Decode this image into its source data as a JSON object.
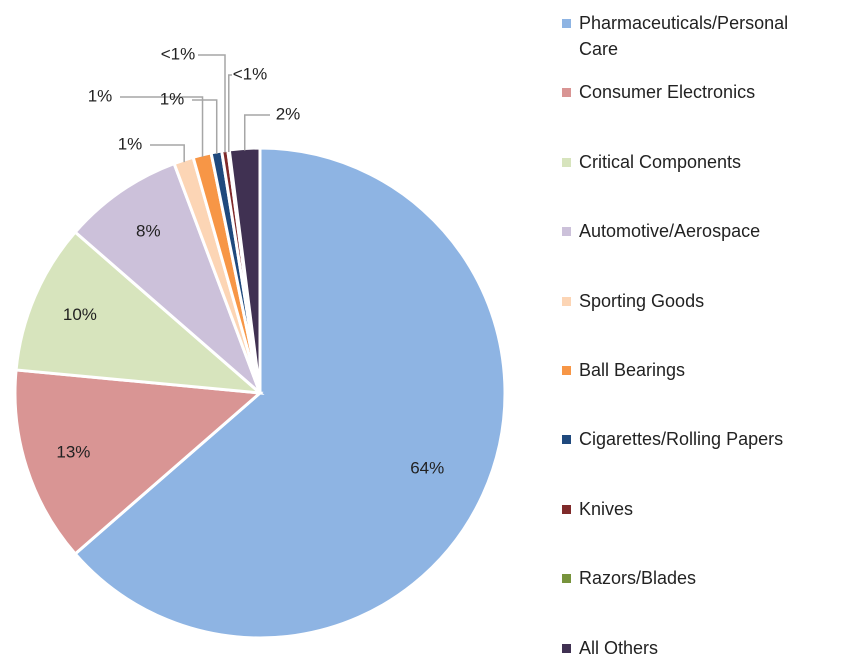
{
  "chart_data": {
    "type": "pie",
    "categories": [
      "Pharmaceuticals/Personal Care",
      "Consumer Electronics",
      "Critical Components",
      "Automotive/Aerospace",
      "Sporting Goods",
      "Ball Bearings",
      "Cigarettes/Rolling Papers",
      "Knives",
      "Razors/Blades",
      "All Others"
    ],
    "values": [
      63.6,
      12.9,
      9.9,
      7.9,
      1.3,
      1.2,
      0.7,
      0.4,
      0.1,
      2.0
    ],
    "value_labels": [
      "64%",
      "13%",
      "10%",
      "8%",
      "1%",
      "1%",
      "1%",
      "<1%",
      "<1%",
      "2%"
    ],
    "colors": [
      "#8eb4e3",
      "#d99594",
      "#d7e4bd",
      "#ccc1da",
      "#fcd5b5",
      "#f79646",
      "#1f497d",
      "#7f2a2a",
      "#77933c",
      "#403152"
    ],
    "legend": "right"
  }
}
